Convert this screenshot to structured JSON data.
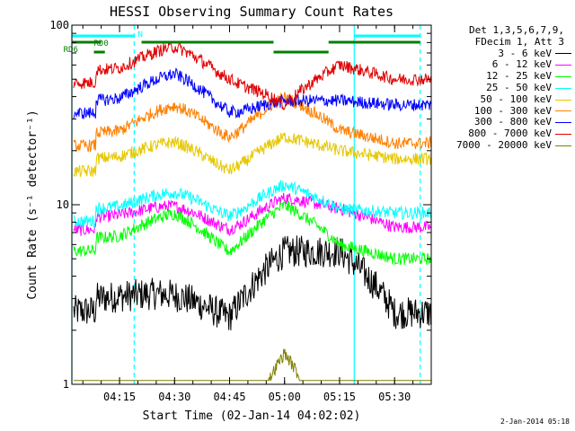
{
  "chart_data": {
    "type": "line",
    "title": "HESSI Observing Summary Count Rates",
    "xlabel": "Start Time (02-Jan-14 04:02:02)",
    "ylabel": "Count Rate (s⁻¹ detector⁻¹)",
    "yscale": "log",
    "ylim": [
      1,
      100
    ],
    "xlim_minutes_after_0400": [
      2.0,
      100.0
    ],
    "x_ticks": [
      "04:15",
      "04:30",
      "04:45",
      "05:00",
      "05:15",
      "05:30"
    ],
    "x_tick_minutes": [
      15,
      30,
      45,
      60,
      75,
      90
    ],
    "y_tick_labels": [
      "1",
      "10",
      "100"
    ],
    "legend_header": [
      "Det 1,3,5,6,7,9,",
      "FDecim 1, Att 3"
    ],
    "series": [
      {
        "name": "3 - 6 keV",
        "color": "#000000",
        "values_at_ticks": [
          3.0,
          2.8,
          2.6,
          5.5,
          5.5,
          2.5
        ]
      },
      {
        "name": "6 - 12 keV",
        "color": "#ff00ff",
        "values_at_ticks": [
          8.5,
          8.8,
          8.0,
          11.0,
          9.5,
          7.5
        ]
      },
      {
        "name": "12 - 25 keV",
        "color": "#00ff00",
        "values_at_ticks": [
          6.5,
          8.0,
          6.0,
          10.0,
          6.0,
          5.0
        ]
      },
      {
        "name": "25 - 50 keV",
        "color": "#00ffff",
        "values_at_ticks": [
          9.5,
          10.5,
          9.5,
          13.0,
          9.5,
          9.0
        ]
      },
      {
        "name": "50 - 100 keV",
        "color": "#e6c800",
        "values_at_ticks": [
          18.0,
          20.0,
          17.0,
          24.0,
          20.0,
          18.0
        ]
      },
      {
        "name": "100 - 300 keV",
        "color": "#ff8000",
        "values_at_ticks": [
          25.0,
          32.0,
          26.0,
          40.0,
          26.0,
          22.0
        ]
      },
      {
        "name": "300 - 800 keV",
        "color": "#0000ff",
        "values_at_ticks": [
          38.0,
          48.0,
          36.0,
          38.0,
          38.0,
          36.0
        ]
      },
      {
        "name": "800 - 7000 keV",
        "color": "#e00000",
        "values_at_ticks": [
          56.0,
          68.0,
          55.0,
          36.0,
          60.0,
          50.0
        ]
      },
      {
        "name": "7000 - 20000 keV",
        "color": "#808000",
        "values_at_ticks": [
          null,
          null,
          null,
          1.5,
          null,
          null
        ]
      }
    ],
    "flags": [
      {
        "label": "N",
        "color": "#00ffff"
      },
      {
        "label": "RD0",
        "color": "#008000"
      },
      {
        "label": "RD6",
        "color": "#008000"
      }
    ],
    "grid": false,
    "legend_placement": "right"
  },
  "footer_date": "2-Jan-2014 05:18"
}
